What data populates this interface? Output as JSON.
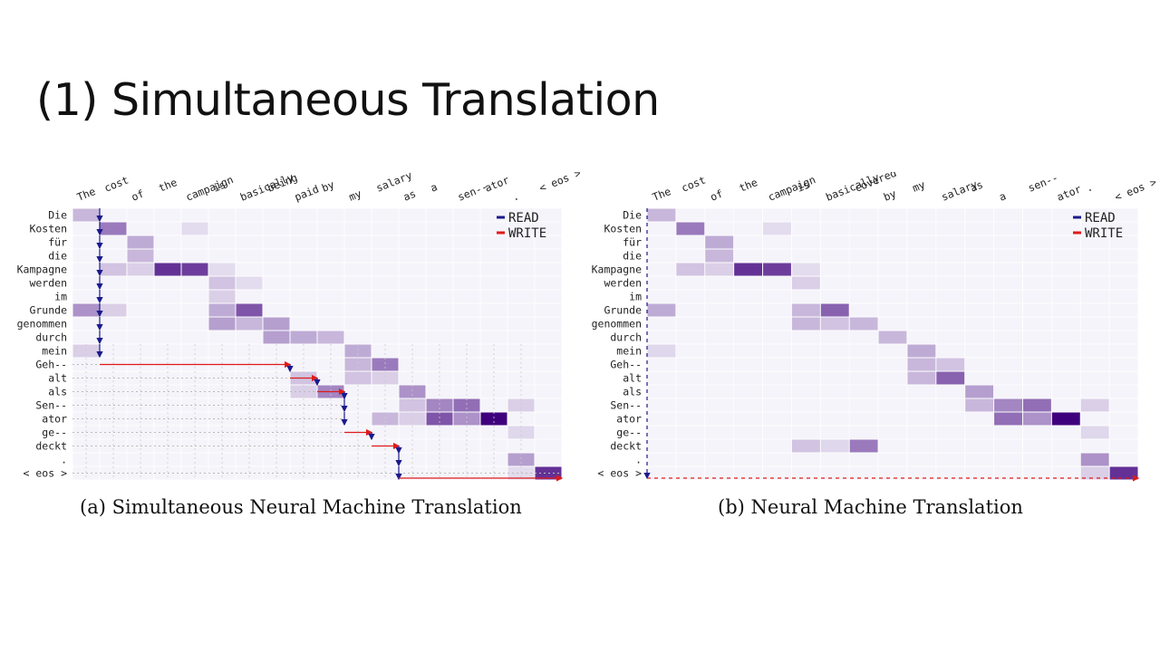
{
  "slide": {
    "title": "(1) Simultaneous Translation"
  },
  "colors": {
    "read": "#1a1a8c",
    "write": "#e01a1a",
    "heat_low": "#f5f4fa",
    "heat_high": "#3f007d"
  },
  "legend": {
    "read_label": "READ",
    "write_label": "WRITE"
  },
  "chart_data": [
    {
      "type": "heatmap",
      "caption_label": "(a)",
      "caption_text": "Simultaneous Neural Machine Translation",
      "x": [
        "The",
        "cost",
        "of",
        "the",
        "campaign",
        "is",
        "basically",
        "being",
        "paid",
        "by",
        "my",
        "salary",
        "as",
        "a",
        "sen--",
        "ator",
        ".",
        "< eos >"
      ],
      "y": [
        "Die",
        "Kosten",
        "für",
        "die",
        "Kampagne",
        "werden",
        "im",
        "Grunde",
        "genommen",
        "durch",
        "mein",
        "Geh--",
        "alt",
        "als",
        "Sen--",
        "ator",
        "ge--",
        "deckt",
        ".",
        "< eos >"
      ],
      "cells": [
        [
          0,
          0,
          0.25
        ],
        [
          1,
          1,
          0.5
        ],
        [
          1,
          4,
          0.1
        ],
        [
          2,
          2,
          0.3
        ],
        [
          3,
          2,
          0.25
        ],
        [
          4,
          1,
          0.2
        ],
        [
          4,
          2,
          0.15
        ],
        [
          4,
          3,
          0.8
        ],
        [
          4,
          4,
          0.75
        ],
        [
          4,
          5,
          0.1
        ],
        [
          5,
          5,
          0.2
        ],
        [
          5,
          6,
          0.1
        ],
        [
          6,
          5,
          0.15
        ],
        [
          7,
          0,
          0.4
        ],
        [
          7,
          1,
          0.15
        ],
        [
          7,
          5,
          0.3
        ],
        [
          7,
          6,
          0.65
        ],
        [
          8,
          5,
          0.35
        ],
        [
          8,
          6,
          0.25
        ],
        [
          8,
          7,
          0.35
        ],
        [
          9,
          7,
          0.35
        ],
        [
          9,
          8,
          0.3
        ],
        [
          9,
          9,
          0.25
        ],
        [
          10,
          0,
          0.15
        ],
        [
          10,
          10,
          0.3
        ],
        [
          11,
          10,
          0.25
        ],
        [
          11,
          11,
          0.5
        ],
        [
          12,
          8,
          0.2
        ],
        [
          12,
          10,
          0.2
        ],
        [
          12,
          11,
          0.15
        ],
        [
          13,
          8,
          0.15
        ],
        [
          13,
          9,
          0.45
        ],
        [
          13,
          12,
          0.4
        ],
        [
          14,
          12,
          0.2
        ],
        [
          14,
          13,
          0.45
        ],
        [
          14,
          14,
          0.55
        ],
        [
          14,
          16,
          0.15
        ],
        [
          15,
          11,
          0.25
        ],
        [
          15,
          12,
          0.15
        ],
        [
          15,
          13,
          0.65
        ],
        [
          15,
          14,
          0.4
        ],
        [
          15,
          15,
          1.0
        ],
        [
          16,
          16,
          0.12
        ],
        [
          18,
          16,
          0.35
        ],
        [
          19,
          16,
          0.1
        ],
        [
          19,
          17,
          0.8
        ]
      ],
      "read_cols": [
        1,
        1,
        1,
        1,
        1,
        1,
        1,
        1,
        1,
        1,
        1,
        8,
        9,
        10,
        10,
        10,
        11,
        12,
        12,
        12
      ],
      "write_rows": [
        [
          11,
          8
        ],
        [
          12,
          9
        ],
        [
          13,
          10
        ],
        [
          14,
          10
        ],
        [
          15,
          10
        ],
        [
          16,
          11
        ],
        [
          17,
          12
        ],
        [
          19,
          18
        ]
      ]
    },
    {
      "type": "heatmap",
      "caption_label": "(b)",
      "caption_text": "Neural Machine Translation",
      "x": [
        "The",
        "cost",
        "of",
        "the",
        "campaign",
        "is",
        "basically",
        "covered",
        "by",
        "my",
        "salary",
        "as",
        "a",
        "sen--",
        "ator",
        ".",
        "< eos >"
      ],
      "y": [
        "Die",
        "Kosten",
        "für",
        "die",
        "Kampagne",
        "werden",
        "im",
        "Grunde",
        "genommen",
        "durch",
        "mein",
        "Geh--",
        "alt",
        "als",
        "Sen--",
        "ator",
        "ge--",
        "deckt",
        ".",
        "< eos >"
      ],
      "cells": [
        [
          0,
          0,
          0.25
        ],
        [
          1,
          1,
          0.5
        ],
        [
          1,
          4,
          0.1
        ],
        [
          2,
          2,
          0.3
        ],
        [
          3,
          2,
          0.25
        ],
        [
          4,
          1,
          0.2
        ],
        [
          4,
          2,
          0.15
        ],
        [
          4,
          3,
          0.8
        ],
        [
          4,
          4,
          0.75
        ],
        [
          4,
          5,
          0.1
        ],
        [
          5,
          5,
          0.15
        ],
        [
          7,
          0,
          0.3
        ],
        [
          7,
          5,
          0.25
        ],
        [
          7,
          6,
          0.6
        ],
        [
          8,
          5,
          0.25
        ],
        [
          8,
          6,
          0.2
        ],
        [
          8,
          7,
          0.25
        ],
        [
          9,
          8,
          0.25
        ],
        [
          10,
          0,
          0.12
        ],
        [
          10,
          9,
          0.3
        ],
        [
          11,
          9,
          0.25
        ],
        [
          11,
          10,
          0.2
        ],
        [
          12,
          9,
          0.25
        ],
        [
          12,
          10,
          0.6
        ],
        [
          13,
          11,
          0.35
        ],
        [
          14,
          11,
          0.25
        ],
        [
          14,
          12,
          0.45
        ],
        [
          14,
          13,
          0.55
        ],
        [
          14,
          15,
          0.15
        ],
        [
          15,
          12,
          0.55
        ],
        [
          15,
          13,
          0.4
        ],
        [
          15,
          14,
          1.0
        ],
        [
          16,
          15,
          0.12
        ],
        [
          17,
          5,
          0.2
        ],
        [
          17,
          6,
          0.12
        ],
        [
          17,
          7,
          0.5
        ],
        [
          18,
          15,
          0.4
        ],
        [
          19,
          15,
          0.15
        ],
        [
          19,
          16,
          0.8
        ]
      ]
    }
  ]
}
